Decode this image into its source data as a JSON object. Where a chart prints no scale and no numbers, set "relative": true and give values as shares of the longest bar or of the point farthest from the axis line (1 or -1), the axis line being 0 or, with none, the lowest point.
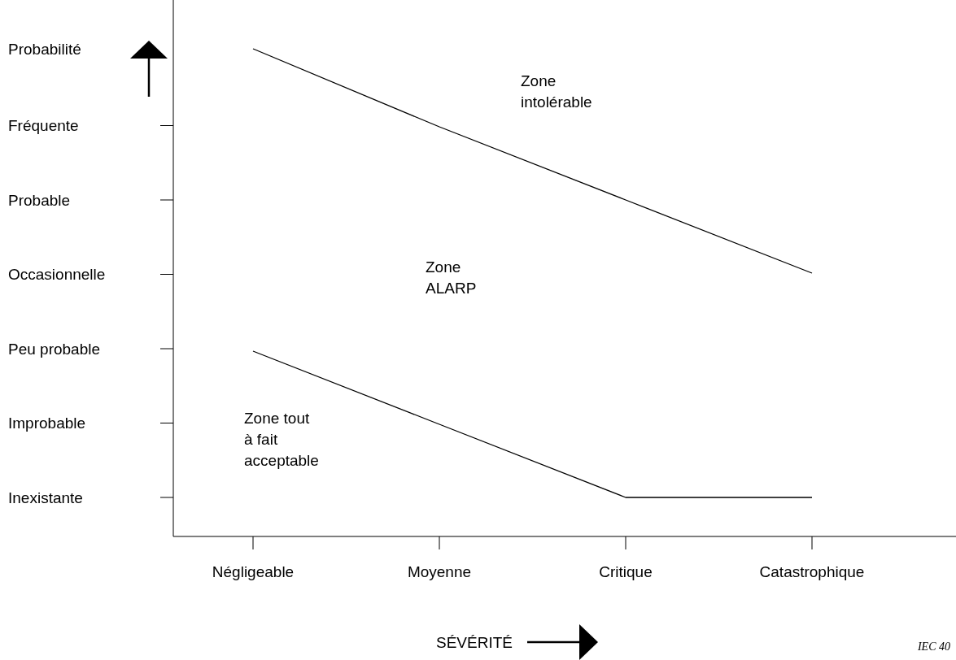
{
  "chart_data": {
    "type": "line",
    "xlabel": "SÉVÉRITÉ",
    "relative": true,
    "categories": [
      "Négligeable",
      "Moyenne",
      "Critique",
      "Catastrophique"
    ],
    "series": [
      {
        "color": "#000000",
        "values": [
          1,
          0.84,
          0.69,
          0.54
        ]
      },
      {
        "color": "#000000",
        "values": [
          0.38,
          0.23,
          0.08,
          0.08
        ]
      }
    ],
    "marker": "none",
    "line_style": "solid",
    "annotations": [
      "Inexistante",
      "Improbable",
      "Peu probable",
      "Occasionnelle",
      "Probable",
      "Fréquente",
      "Probabilité",
      "Zone intolérable",
      "Zone ALARP",
      "Zone tout à fait acceptable",
      "IEC 40"
    ]
  }
}
